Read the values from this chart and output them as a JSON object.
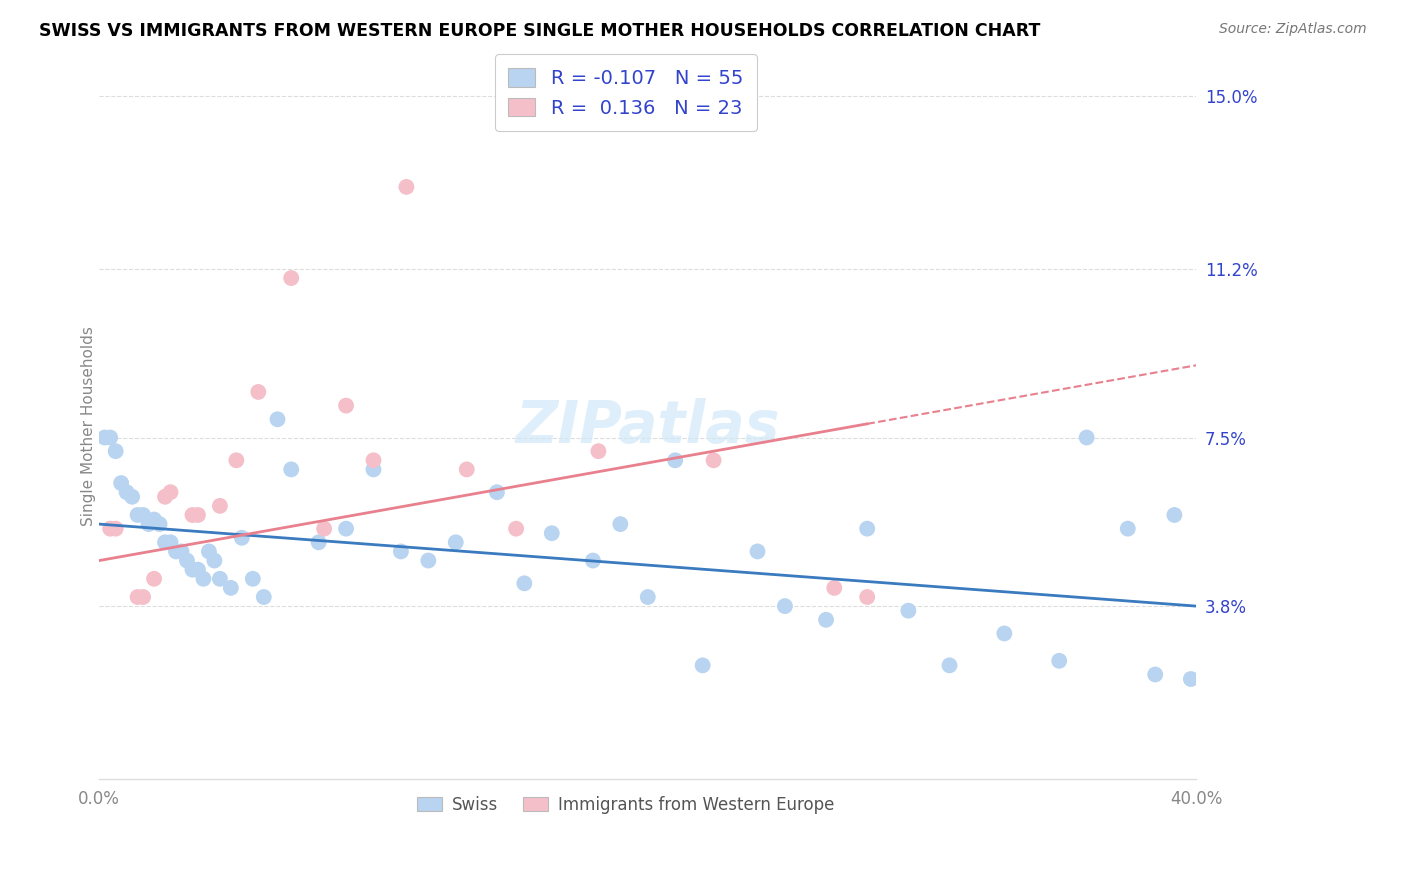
{
  "title": "SWISS VS IMMIGRANTS FROM WESTERN EUROPE SINGLE MOTHER HOUSEHOLDS CORRELATION CHART",
  "source": "Source: ZipAtlas.com",
  "ylabel": "Single Mother Households",
  "xlim": [
    0.0,
    0.4
  ],
  "ylim": [
    0.0,
    0.155
  ],
  "xtick_positions": [
    0.0,
    0.05,
    0.1,
    0.15,
    0.2,
    0.25,
    0.3,
    0.35,
    0.4
  ],
  "xtick_labels": [
    "0.0%",
    "",
    "",
    "",
    "",
    "",
    "",
    "",
    "40.0%"
  ],
  "ytick_vals_right": [
    0.15,
    0.112,
    0.075,
    0.038
  ],
  "ytick_labels_right": [
    "15.0%",
    "11.2%",
    "7.5%",
    "3.8%"
  ],
  "swiss_R": "-0.107",
  "swiss_N": "55",
  "immig_R": "0.136",
  "immig_N": "23",
  "swiss_color": "#b8d4f0",
  "immig_color": "#f5bfca",
  "swiss_line_color": "#3a7abf",
  "immig_line_color": "#e8808e",
  "legend_text_color": "#3344cc",
  "axis_color": "#888888",
  "grid_color": "#dddddd",
  "swiss_x": [
    0.002,
    0.004,
    0.006,
    0.008,
    0.01,
    0.012,
    0.014,
    0.016,
    0.018,
    0.02,
    0.022,
    0.024,
    0.026,
    0.028,
    0.03,
    0.032,
    0.034,
    0.036,
    0.038,
    0.04,
    0.042,
    0.044,
    0.048,
    0.052,
    0.056,
    0.06,
    0.065,
    0.07,
    0.08,
    0.09,
    0.1,
    0.11,
    0.12,
    0.13,
    0.145,
    0.155,
    0.165,
    0.18,
    0.19,
    0.2,
    0.21,
    0.22,
    0.24,
    0.25,
    0.265,
    0.28,
    0.295,
    0.31,
    0.33,
    0.35,
    0.36,
    0.375,
    0.385,
    0.392,
    0.398
  ],
  "swiss_y": [
    0.075,
    0.075,
    0.072,
    0.065,
    0.063,
    0.062,
    0.058,
    0.058,
    0.056,
    0.057,
    0.056,
    0.052,
    0.052,
    0.05,
    0.05,
    0.048,
    0.046,
    0.046,
    0.044,
    0.05,
    0.048,
    0.044,
    0.042,
    0.053,
    0.044,
    0.04,
    0.079,
    0.068,
    0.052,
    0.055,
    0.068,
    0.05,
    0.048,
    0.052,
    0.063,
    0.043,
    0.054,
    0.048,
    0.056,
    0.04,
    0.07,
    0.025,
    0.05,
    0.038,
    0.035,
    0.055,
    0.037,
    0.025,
    0.032,
    0.026,
    0.075,
    0.055,
    0.023,
    0.058,
    0.022
  ],
  "immig_x": [
    0.004,
    0.006,
    0.014,
    0.016,
    0.02,
    0.024,
    0.026,
    0.034,
    0.036,
    0.044,
    0.05,
    0.058,
    0.07,
    0.082,
    0.09,
    0.1,
    0.112,
    0.134,
    0.152,
    0.182,
    0.224,
    0.268,
    0.28
  ],
  "immig_y": [
    0.055,
    0.055,
    0.04,
    0.04,
    0.044,
    0.062,
    0.063,
    0.058,
    0.058,
    0.06,
    0.07,
    0.085,
    0.11,
    0.055,
    0.082,
    0.07,
    0.13,
    0.068,
    0.055,
    0.072,
    0.07,
    0.042,
    0.04
  ]
}
